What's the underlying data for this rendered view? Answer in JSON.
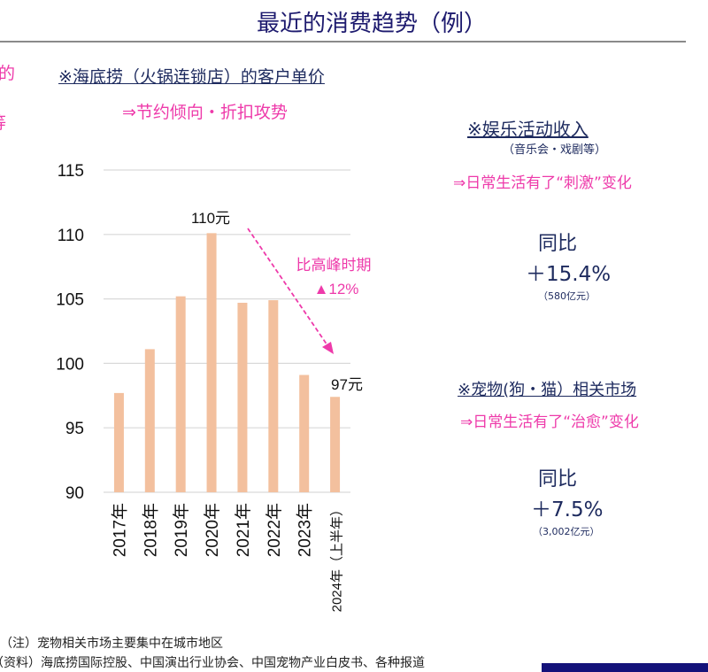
{
  "header": {
    "title": "最近的消费趋势（例）"
  },
  "left_edge": {
    "line1": "的",
    "line2": "等"
  },
  "chart_section": {
    "heading": "※海底捞（火锅连锁店）的客户单价",
    "subheading": "⇒节约倾向・折扣攻势",
    "peak_label": "110元",
    "latest_label": "97元",
    "annotation_line1": "比高峰时期",
    "annotation_line2": "▲12%"
  },
  "chart_data": {
    "type": "bar",
    "categories": [
      "2017年",
      "2018年",
      "2019年",
      "2020年",
      "2021年",
      "2022年",
      "2023年",
      "2024年（上半年）"
    ],
    "values": [
      97.7,
      101.1,
      105.2,
      110.1,
      104.7,
      104.9,
      99.1,
      97.4
    ],
    "ylim": [
      90,
      115
    ],
    "yticks": [
      90,
      95,
      100,
      105,
      110,
      115
    ],
    "grid": true,
    "bar_color": "#f3c09e",
    "annotation_color": "#ee3aaa"
  },
  "entertainment": {
    "heading": "※娱乐活动收入",
    "subheading": "（音乐会・戏剧等）",
    "note": "⇒日常生活有了“刺激”变化",
    "yoy_label": "同比",
    "yoy_value": "＋15.4%",
    "amount": "（580亿元）"
  },
  "pets": {
    "heading": "※宠物(狗・猫）相关市场",
    "note": "⇒日常生活有了“治愈”变化",
    "yoy_label": "同比",
    "yoy_value": "＋7.5%",
    "amount": "（3,002亿元）"
  },
  "footer": {
    "note": "（注）宠物相关市场主要集中在城市地区",
    "source": "（资料）海底捞国际控股、中国演出行业协会、中国宠物产业白皮书、各种报道"
  },
  "colors": {
    "title": "#1d1a6e",
    "accent": "#ee3aaa",
    "navy": "#1d2a5e",
    "footer_bar": "#14127a"
  }
}
